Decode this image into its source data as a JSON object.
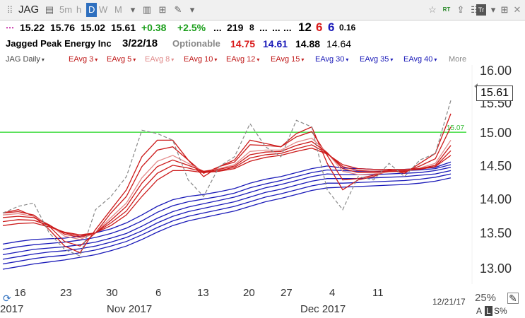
{
  "toolbar": {
    "symbol": "JAG",
    "intervals": [
      "5m",
      "h",
      "D",
      "W",
      "M"
    ],
    "active_interval": "D",
    "icons": [
      "star-icon",
      "rt-icon",
      "share-icon",
      "tr-icon",
      "close-icon"
    ],
    "rt_label": "RT",
    "tr_label": "Tr"
  },
  "quote": {
    "last": "15.22",
    "high": "15.76",
    "low": "15.02",
    "close": "15.61",
    "change": "+0.38",
    "change_pct": "+2.5%",
    "ellipsis1": "...",
    "volume": "219",
    "vol_small": "8",
    "ellipsis2": "...",
    "ellipsis3": "...",
    "ellipsis4": "...",
    "n1": "12",
    "n2": "6",
    "n3": "6",
    "n4": "0.16",
    "company": "Jagged Peak Energy Inc",
    "date": "3/22/18",
    "optionable": "Optionable",
    "v1": "14.75",
    "v2": "14.61",
    "v3": "14.88",
    "v4": "14.64",
    "colors": {
      "up": "#1a9e1a",
      "red": "#d91a1a",
      "blue": "#1a1ab8"
    }
  },
  "legend": {
    "items": [
      "JAG Daily",
      "EAvg 3",
      "EAvg 5",
      "EAvg 8",
      "EAvg 10",
      "EAvg 12",
      "EAvg 15",
      "EAvg 30",
      "EAvg 35",
      "EAvg 40"
    ],
    "more": "More"
  },
  "chart_data": {
    "type": "line",
    "y_axis_labels": [
      "16.00",
      "15.50",
      "15.00",
      "14.50",
      "14.00",
      "13.50",
      "13.00"
    ],
    "ylim": [
      12.85,
      16.2
    ],
    "last_price": "15.61",
    "hline": {
      "value": 15.07,
      "label": "15.07",
      "color": "#44dd44"
    },
    "x_tick_labels": [
      "16",
      "23",
      "30",
      "6",
      "13",
      "20",
      "27",
      "4",
      "11"
    ],
    "month_labels": [
      "2017",
      "Nov 2017",
      "Dec 2017"
    ],
    "end_date": "12/21/17",
    "series": [
      {
        "color": "#888888",
        "dashed": true,
        "values": [
          13.85,
          13.95,
          14.0,
          13.55,
          13.3,
          13.2,
          13.9,
          14.1,
          14.4,
          15.1,
          15.05,
          14.95,
          14.35,
          14.1,
          14.55,
          14.7,
          15.2,
          14.85,
          14.7,
          15.25,
          15.15,
          14.2,
          13.9,
          14.4,
          14.35,
          14.6,
          14.4,
          14.65,
          14.75,
          15.55
        ]
      },
      {
        "color": "#cc1a1a",
        "dashed": false,
        "values": [
          13.85,
          13.9,
          13.8,
          13.6,
          13.35,
          13.25,
          13.6,
          13.9,
          14.2,
          14.7,
          14.95,
          14.95,
          14.65,
          14.4,
          14.55,
          14.65,
          14.95,
          14.9,
          14.85,
          15.05,
          15.15,
          14.6,
          14.2,
          14.35,
          14.4,
          14.5,
          14.45,
          14.6,
          14.75,
          15.35
        ]
      },
      {
        "color": "#cc1a1a",
        "dashed": false,
        "values": [
          13.85,
          13.87,
          13.82,
          13.65,
          13.42,
          13.35,
          13.55,
          13.85,
          14.1,
          14.55,
          14.8,
          14.85,
          14.65,
          14.45,
          14.55,
          14.62,
          14.88,
          14.87,
          14.85,
          15.0,
          15.08,
          14.72,
          14.35,
          14.37,
          14.42,
          14.48,
          14.47,
          14.56,
          14.67,
          15.15
        ]
      },
      {
        "color": "#e38a8a",
        "dashed": false,
        "values": [
          13.82,
          13.84,
          13.8,
          13.67,
          13.5,
          13.45,
          13.55,
          13.78,
          14.0,
          14.38,
          14.63,
          14.72,
          14.6,
          14.48,
          14.52,
          14.58,
          14.78,
          14.8,
          14.8,
          14.92,
          14.98,
          14.76,
          14.48,
          14.43,
          14.44,
          14.47,
          14.48,
          14.53,
          14.6,
          14.95
        ]
      },
      {
        "color": "#cc1a1a",
        "dashed": false,
        "values": [
          13.78,
          13.8,
          13.78,
          13.67,
          13.53,
          13.48,
          13.55,
          13.74,
          13.95,
          14.3,
          14.55,
          14.65,
          14.57,
          14.48,
          14.51,
          14.56,
          14.73,
          14.77,
          14.78,
          14.87,
          14.93,
          14.76,
          14.52,
          14.46,
          14.46,
          14.48,
          14.48,
          14.52,
          14.57,
          14.87
        ]
      },
      {
        "color": "#cc1a1a",
        "dashed": false,
        "values": [
          13.72,
          13.75,
          13.74,
          13.66,
          13.55,
          13.5,
          13.55,
          13.7,
          13.88,
          14.2,
          14.45,
          14.57,
          14.53,
          14.47,
          14.49,
          14.54,
          14.68,
          14.73,
          14.75,
          14.82,
          14.88,
          14.75,
          14.55,
          14.49,
          14.48,
          14.49,
          14.49,
          14.51,
          14.55,
          14.79
        ]
      },
      {
        "color": "#cc1a1a",
        "dashed": false,
        "values": [
          13.66,
          13.69,
          13.7,
          13.64,
          13.56,
          13.52,
          13.55,
          13.66,
          13.82,
          14.1,
          14.35,
          14.49,
          14.49,
          14.46,
          14.48,
          14.52,
          14.63,
          14.69,
          14.72,
          14.78,
          14.83,
          14.74,
          14.58,
          14.52,
          14.51,
          14.51,
          14.51,
          14.52,
          14.55,
          14.72
        ]
      },
      {
        "color": "#1a1ab8",
        "dashed": false,
        "values": [
          13.38,
          13.42,
          13.45,
          13.46,
          13.47,
          13.5,
          13.55,
          13.61,
          13.7,
          13.82,
          13.95,
          14.05,
          14.1,
          14.13,
          14.17,
          14.22,
          14.3,
          14.36,
          14.4,
          14.46,
          14.52,
          14.56,
          14.53,
          14.52,
          14.51,
          14.51,
          14.51,
          14.52,
          14.54,
          14.62
        ]
      },
      {
        "color": "#1a1ab8",
        "dashed": false,
        "values": [
          13.3,
          13.34,
          13.37,
          13.39,
          13.41,
          13.44,
          13.48,
          13.54,
          13.62,
          13.73,
          13.86,
          13.96,
          14.02,
          14.06,
          14.1,
          14.15,
          14.23,
          14.29,
          14.34,
          14.4,
          14.46,
          14.5,
          14.49,
          14.48,
          14.48,
          14.48,
          14.49,
          14.5,
          14.52,
          14.58
        ]
      },
      {
        "color": "#1a1ab8",
        "dashed": false,
        "values": [
          13.22,
          13.26,
          13.3,
          13.32,
          13.34,
          13.37,
          13.41,
          13.47,
          13.54,
          13.65,
          13.77,
          13.87,
          13.94,
          13.99,
          14.04,
          14.09,
          14.16,
          14.23,
          14.28,
          14.34,
          14.4,
          14.44,
          14.43,
          14.43,
          14.43,
          14.44,
          14.45,
          14.46,
          14.49,
          14.54
        ]
      },
      {
        "color": "#1a1ab8",
        "dashed": false,
        "values": [
          13.15,
          13.19,
          13.23,
          13.26,
          13.28,
          13.31,
          13.35,
          13.41,
          13.48,
          13.58,
          13.7,
          13.8,
          13.87,
          13.92,
          13.97,
          14.02,
          14.09,
          14.16,
          14.21,
          14.27,
          14.33,
          14.37,
          14.37,
          14.37,
          14.38,
          14.39,
          14.4,
          14.42,
          14.44,
          14.49
        ]
      },
      {
        "color": "#1a1ab8",
        "dashed": false,
        "values": [
          13.08,
          13.12,
          13.16,
          13.19,
          13.21,
          13.25,
          13.29,
          13.35,
          13.42,
          13.52,
          13.63,
          13.73,
          13.8,
          13.85,
          13.9,
          13.95,
          14.02,
          14.09,
          14.14,
          14.2,
          14.26,
          14.3,
          14.3,
          14.31,
          14.32,
          14.33,
          14.34,
          14.36,
          14.39,
          14.44
        ]
      },
      {
        "color": "#1a1ab8",
        "dashed": false,
        "values": [
          13.0,
          13.04,
          13.08,
          13.11,
          13.14,
          13.18,
          13.22,
          13.28,
          13.35,
          13.45,
          13.56,
          13.66,
          13.73,
          13.78,
          13.83,
          13.88,
          13.95,
          14.02,
          14.07,
          14.13,
          14.19,
          14.23,
          14.24,
          14.25,
          14.26,
          14.27,
          14.28,
          14.3,
          14.33,
          14.38
        ]
      }
    ]
  },
  "footer": {
    "zoom": "25%",
    "a_label": "A",
    "l_label": "L",
    "s_label": "S%"
  }
}
